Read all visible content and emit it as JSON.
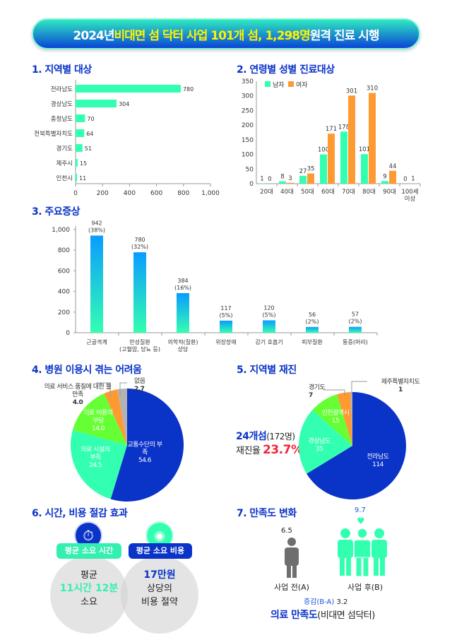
{
  "banner": {
    "pre": "2024년 ",
    "highlight": "비대면 섬 닥터 사업 101개 섬, 1,298명",
    "post": " 원격 진료 시행"
  },
  "colors": {
    "blue": "#0a33c8",
    "mint": "#33ffb0",
    "orange": "#ff9a33",
    "green": "#66ff33",
    "gray": "#b3b3b3",
    "red": "#f0283c",
    "gray_person": "#6e6e6e"
  },
  "chart_data": [
    {
      "id": "region",
      "title": "1. 지역별 대상",
      "type": "bar",
      "orientation": "horizontal",
      "categories": [
        "전라남도",
        "경상남도",
        "충청남도",
        "전북특별자치도",
        "경기도",
        "제주시",
        "인천시"
      ],
      "values": [
        780,
        304,
        70,
        64,
        51,
        15,
        11
      ],
      "xlim": [
        0,
        1000
      ],
      "xticks": [
        "0",
        "200",
        "400",
        "600",
        "800",
        "1,000"
      ]
    },
    {
      "id": "age_sex",
      "title": "2. 연령별 성별 진료대상",
      "type": "bar",
      "categories": [
        "20대",
        "40대",
        "50대",
        "60대",
        "70대",
        "80대",
        "90대",
        "100세 이상"
      ],
      "series": [
        {
          "name": "남자",
          "values": [
            1,
            8,
            27,
            100,
            178,
            101,
            9,
            0
          ]
        },
        {
          "name": "여자",
          "values": [
            0,
            3,
            35,
            171,
            301,
            310,
            44,
            1
          ]
        }
      ],
      "ylim": [
        0,
        350
      ],
      "yticks": [
        "0",
        "50",
        "100",
        "150",
        "200",
        "250",
        "300",
        "350"
      ],
      "legend": "top-left"
    },
    {
      "id": "symptoms",
      "title": "3. 주요증상",
      "type": "bar",
      "categories": [
        "근골격계",
        "만성질환 (고혈압, 당뇨 등)",
        "의학적(질환) 상담",
        "위장장애",
        "감기 호흡기",
        "피부질환",
        "통증(머리)"
      ],
      "values": [
        942,
        780,
        384,
        117,
        120,
        56,
        57
      ],
      "percents": [
        "(38%)",
        "(32%)",
        "(16%)",
        "(5%)",
        "(5%)",
        "(2%)",
        "(2%)"
      ],
      "ylim": [
        0,
        1000
      ],
      "yticks": [
        "0",
        "200",
        "400",
        "600",
        "800",
        "1,000"
      ]
    },
    {
      "id": "difficulty",
      "title": "4. 병원 이용시 겪는 어려움",
      "type": "pie",
      "labels": [
        "교통수단의 부족",
        "의료 시설의 부족",
        "의료 비용의 부담",
        "의료 서비스 품질에 대한 불만족",
        "없음"
      ],
      "values": [
        54.6,
        24.5,
        14.0,
        4.0,
        2.7
      ],
      "value_labels": [
        "54.6",
        "24.5",
        "14.0",
        "4.0",
        "2.7"
      ]
    },
    {
      "id": "revisit",
      "title": "5. 지역별 재진",
      "type": "pie",
      "labels": [
        "전라남도",
        "경상남도",
        "인천광역시",
        "경기도",
        "제주특별자치도"
      ],
      "values": [
        114,
        35,
        15,
        7,
        1
      ],
      "value_labels": [
        "114",
        "35",
        "15",
        "7",
        "1"
      ]
    }
  ],
  "revisit_summary": {
    "islands": "24개섬",
    "people": "(172명)",
    "rate_label": "재진율 ",
    "rate": "23.7%"
  },
  "savings": {
    "title": "6. 시간, 비용 절감 효과",
    "time_badge": "평균 소요 시간",
    "time_l1": "평균",
    "time_value": "11시간 12분",
    "time_l3": "소요",
    "cost_badge": "평균 소요 비용",
    "cost_value": "17만원",
    "cost_l2": "상당의",
    "cost_l3": "비용 절약"
  },
  "satisfaction": {
    "title": "7. 만족도 변화",
    "before_value": "6.5",
    "after_value": "9.7",
    "before_label": "사업 전(A)",
    "after_label": "사업 후(B)",
    "diff_label": "증감(B-A)",
    "diff_value": "3.2",
    "footer_bold": "의료 만족도",
    "footer_rest": "(비대면 섬닥터)"
  }
}
